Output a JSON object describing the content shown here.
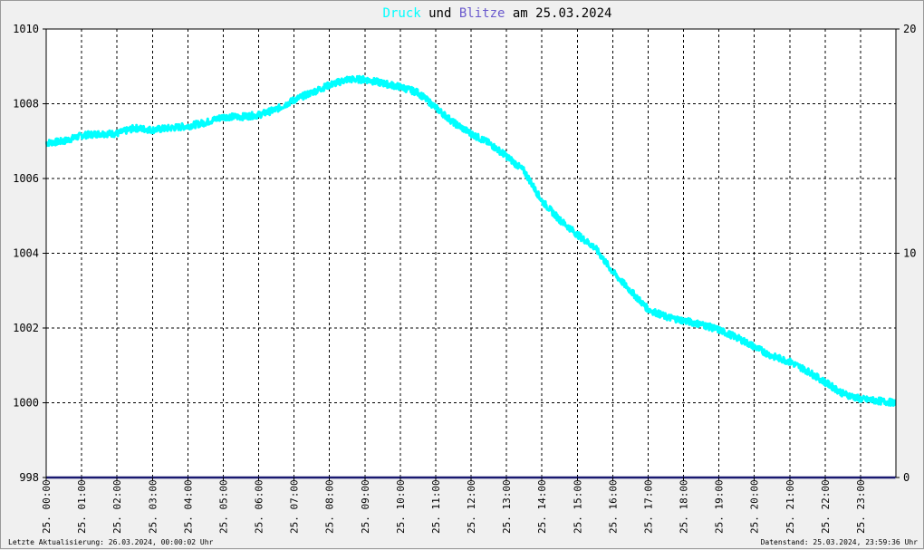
{
  "title": {
    "part1": "Druck",
    "part2": " und ",
    "part3": "Blitze",
    "part4": " am 25.03.2024",
    "color1": "#00ffff",
    "color2": "#000000",
    "color3": "#6a5acd",
    "color4": "#000000"
  },
  "footer": {
    "left": "Letzte Aktualisierung: 26.03.2024, 00:00:02 Uhr",
    "right": "Datenstand: 25.03.2024, 23:59:36 Uhr"
  },
  "chart_data": {
    "type": "line",
    "title": "Druck und Blitze am 25.03.2024",
    "background": "#ffffff",
    "grid": true,
    "grid_style": "dotted",
    "x_ticks": [
      "25. 00:00",
      "25. 01:00",
      "25. 02:00",
      "25. 03:00",
      "25. 04:00",
      "25. 05:00",
      "25. 06:00",
      "25. 07:00",
      "25. 08:00",
      "25. 09:00",
      "25. 10:00",
      "25. 11:00",
      "25. 12:00",
      "25. 13:00",
      "25. 14:00",
      "25. 15:00",
      "25. 16:00",
      "25. 17:00",
      "25. 18:00",
      "25. 19:00",
      "25. 20:00",
      "25. 21:00",
      "25. 22:00",
      "25. 23:00"
    ],
    "xlim": [
      0,
      24
    ],
    "y_left": {
      "ticks": [
        "1010",
        "1008",
        "1006",
        "1004",
        "1002",
        "1000",
        "998"
      ],
      "ylim": [
        998,
        1010
      ]
    },
    "y_right": {
      "ticks": [
        "20",
        "10",
        "0"
      ],
      "ylim": [
        0,
        20
      ]
    },
    "series": [
      {
        "name": "Druck",
        "axis": "left",
        "color": "#00ffff",
        "points": [
          [
            0,
            1006.95
          ],
          [
            0.5,
            1007.0
          ],
          [
            1,
            1007.15
          ],
          [
            1.5,
            1007.2
          ],
          [
            2,
            1007.2
          ],
          [
            2.5,
            1007.35
          ],
          [
            3,
            1007.3
          ],
          [
            3.5,
            1007.35
          ],
          [
            4,
            1007.4
          ],
          [
            4.5,
            1007.5
          ],
          [
            5,
            1007.65
          ],
          [
            5.5,
            1007.65
          ],
          [
            6,
            1007.7
          ],
          [
            6.5,
            1007.85
          ],
          [
            7,
            1008.1
          ],
          [
            7.5,
            1008.3
          ],
          [
            8,
            1008.5
          ],
          [
            8.5,
            1008.65
          ],
          [
            9,
            1008.65
          ],
          [
            9.5,
            1008.55
          ],
          [
            10,
            1008.45
          ],
          [
            10.5,
            1008.3
          ],
          [
            11,
            1007.9
          ],
          [
            11.5,
            1007.5
          ],
          [
            12,
            1007.2
          ],
          [
            12.5,
            1006.95
          ],
          [
            13,
            1006.6
          ],
          [
            13.5,
            1006.2
          ],
          [
            14,
            1005.4
          ],
          [
            14.5,
            1004.9
          ],
          [
            15,
            1004.5
          ],
          [
            15.5,
            1004.15
          ],
          [
            16,
            1003.5
          ],
          [
            16.5,
            1003.0
          ],
          [
            17,
            1002.5
          ],
          [
            17.5,
            1002.3
          ],
          [
            18,
            1002.2
          ],
          [
            18.5,
            1002.1
          ],
          [
            19,
            1001.95
          ],
          [
            19.5,
            1001.75
          ],
          [
            20,
            1001.5
          ],
          [
            20.5,
            1001.25
          ],
          [
            21,
            1001.1
          ],
          [
            21.5,
            1000.85
          ],
          [
            22,
            1000.55
          ],
          [
            22.5,
            1000.25
          ],
          [
            23,
            1000.1
          ],
          [
            23.5,
            1000.05
          ],
          [
            23.99,
            1000.0
          ]
        ]
      },
      {
        "name": "Blitze",
        "axis": "right",
        "color": "#191970",
        "points": [
          [
            0,
            0
          ],
          [
            23.99,
            0
          ]
        ]
      }
    ]
  }
}
